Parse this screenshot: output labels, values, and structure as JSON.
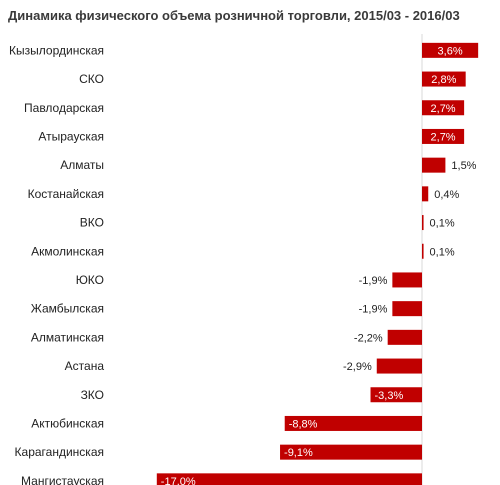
{
  "chart_data": {
    "type": "bar",
    "orientation": "horizontal",
    "title": "Динамика физического объема розничной торговли, 2015/03 - 2016/03",
    "unit": "%",
    "categories": [
      "Кызылординская",
      "СКО",
      "Павлодарская",
      "Атырауская",
      "Алматы",
      "Костанайская",
      "ВКО",
      "Акмолинская",
      "ЮКО",
      "Жамбылская",
      "Алматинская",
      "Астана",
      "ЗКО",
      "Актюбинская",
      "Карагандинская",
      "Мангистауская"
    ],
    "values": [
      3.6,
      2.8,
      2.7,
      2.7,
      1.5,
      0.4,
      0.1,
      0.1,
      -1.9,
      -1.9,
      -2.2,
      -2.9,
      -3.3,
      -8.8,
      -9.1,
      -17.0
    ],
    "value_labels": [
      "3,6%",
      "2,8%",
      "2,7%",
      "2,7%",
      "1,5%",
      "0,4%",
      "0,1%",
      "0,1%",
      "-1,9%",
      "-1,9%",
      "-2,2%",
      "-2,9%",
      "-3,3%",
      "-8,8%",
      "-9,1%",
      "-17,0%"
    ],
    "bar_color": "#c00000",
    "grid": false,
    "legend": "none"
  }
}
